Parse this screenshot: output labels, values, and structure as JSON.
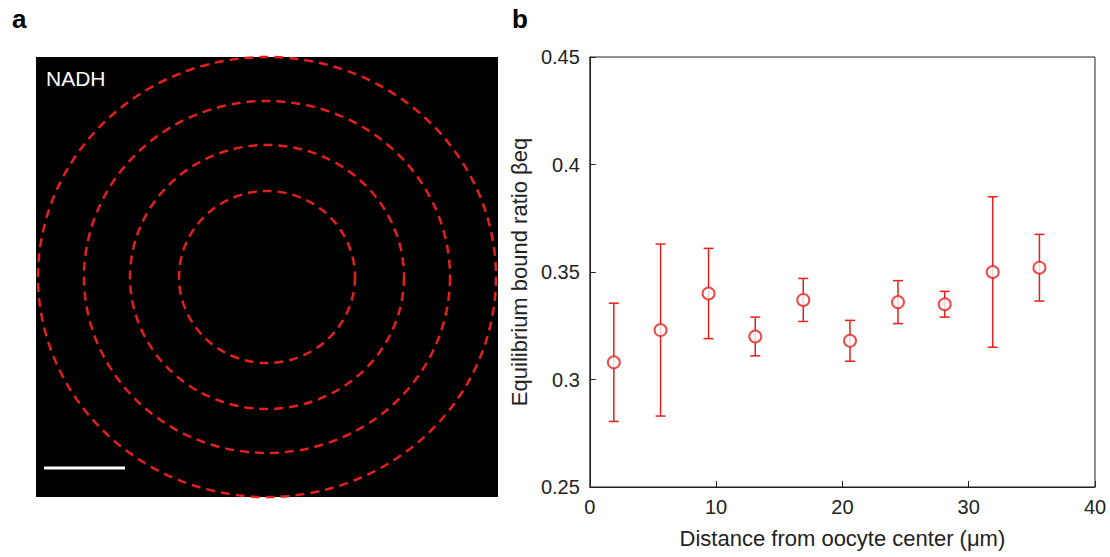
{
  "panel_labels": [
    "a",
    "b"
  ],
  "image": {
    "label": "NADH"
  },
  "chart_data": {
    "type": "scatter",
    "x_label": "Distance from oocyte center (μm)",
    "y_label": "Equilibrium bound ratio βeq",
    "x": [
      1.9,
      5.6,
      9.4,
      13.1,
      16.9,
      20.6,
      24.4,
      28.1,
      31.9,
      35.6
    ],
    "values": [
      0.308,
      0.323,
      0.34,
      0.32,
      0.337,
      0.318,
      0.336,
      0.335,
      0.35,
      0.352
    ],
    "errors": [
      0.0275,
      0.04,
      0.021,
      0.009,
      0.01,
      0.0095,
      0.01,
      0.006,
      0.035,
      0.0155
    ],
    "color": "#e3211c",
    "marker": "open_circle",
    "xlim": [
      0,
      40
    ],
    "xticks": [
      0,
      10,
      20,
      30,
      40
    ],
    "ylim": [
      0.25,
      0.45
    ],
    "yticks": [
      0.25,
      0.3,
      0.35,
      0.4,
      0.45
    ],
    "grid": false
  }
}
